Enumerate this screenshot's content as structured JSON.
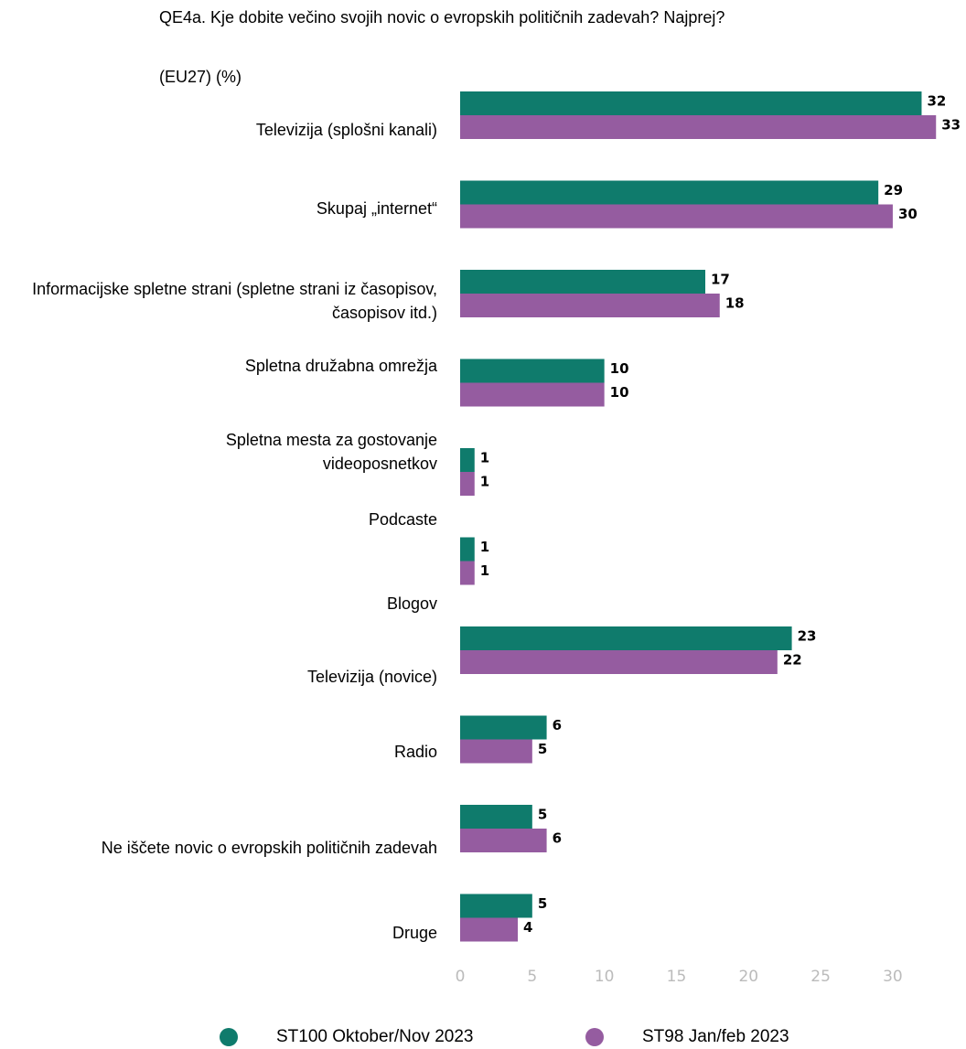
{
  "chart_data": {
    "type": "bar",
    "orientation": "horizontal",
    "title": "QE4a. Kje dobite večino svojih novic o evropskih političnih zadevah? Najprej?",
    "subtitle": "(EU27) (%)",
    "categories": [
      "Televizija (splošni kanali)",
      "Skupaj „internet“",
      "Informacijske spletne strani (spletne strani iz časopisov, časopisov itd.)",
      "Spletna družabna omrežja",
      "Spletna mesta za gostovanje videoposnetkov",
      "Podcaste",
      "Blogov",
      "Televizija (novice)",
      "Radio",
      "Ne iščete novic o evropskih političnih zadevah",
      "Druge"
    ],
    "series": [
      {
        "name": "ST100 Oktober/Nov 2023",
        "color": "#0f7b6c",
        "values": [
          32,
          29,
          17,
          10,
          1,
          1,
          null,
          23,
          6,
          5,
          5
        ]
      },
      {
        "name": "ST98 Jan/feb 2023",
        "color": "#955ca0",
        "values": [
          33,
          30,
          18,
          10,
          1,
          1,
          null,
          22,
          5,
          6,
          4
        ]
      }
    ],
    "xlim": [
      0,
      34
    ],
    "xticks": [
      0,
      5,
      10,
      15,
      20,
      25,
      30
    ],
    "grid": false,
    "legend": "bottom"
  }
}
